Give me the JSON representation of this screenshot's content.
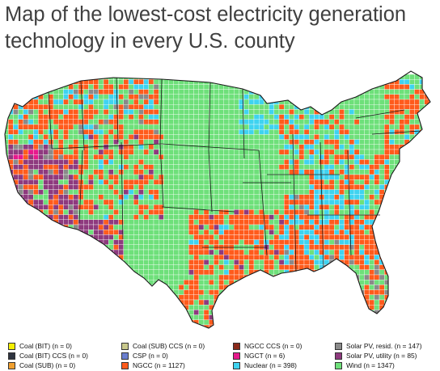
{
  "title": "Map of the lowest-cost electricity generation technology in every U.S. county",
  "title_lines": [
    "Map of the lowest-cost electricity generation",
    "technology in every U.S. county"
  ],
  "legend": [
    {
      "key": "coal-bit",
      "label": "Coal (BIT) (n = 0)",
      "technology": "Coal (BIT)",
      "count": 0,
      "color": "#f5f000"
    },
    {
      "key": "coal-bit-ccs",
      "label": "Coal (BIT) CCS (n = 0)",
      "technology": "Coal (BIT) CCS",
      "count": 0,
      "color": "#2e3440"
    },
    {
      "key": "coal-sub",
      "label": "Coal (SUB) (n = 0)",
      "technology": "Coal (SUB)",
      "count": 0,
      "color": "#f0a030"
    },
    {
      "key": "coal-sub-ccs",
      "label": "Coal (SUB) CCS (n = 0)",
      "technology": "Coal (SUB) CCS",
      "count": 0,
      "color": "#c8c88c"
    },
    {
      "key": "csp",
      "label": "CSP (n = 0)",
      "technology": "CSP",
      "count": 0,
      "color": "#6a7fd0"
    },
    {
      "key": "ngcc",
      "label": "NGCC (n = 1127)",
      "technology": "NGCC",
      "count": 1127,
      "color": "#ff5b1c"
    },
    {
      "key": "ngcc-ccs",
      "label": "NGCC CCS (n = 0)",
      "technology": "NGCC CCS",
      "count": 0,
      "color": "#8b2a1a"
    },
    {
      "key": "ngct",
      "label": "NGCT (n = 6)",
      "technology": "NGCT",
      "count": 6,
      "color": "#e6198c"
    },
    {
      "key": "nuclear",
      "label": "Nuclear (n = 398)",
      "technology": "Nuclear",
      "count": 398,
      "color": "#3fd3f0"
    },
    {
      "key": "solar-resid",
      "label": "Solar PV, resid. (n = 147)",
      "technology": "Solar PV, resid.",
      "count": 147,
      "color": "#8a8a8a"
    },
    {
      "key": "solar-utility",
      "label": "Solar PV, utility (n = 85)",
      "technology": "Solar PV, utility",
      "count": 85,
      "color": "#8e3a7e"
    },
    {
      "key": "wind",
      "label": "Wind (n = 1347)",
      "technology": "Wind",
      "count": 1347,
      "color": "#6ee07a"
    }
  ],
  "colors": {
    "state_border": "#1a1a1a",
    "county_border": "#ffffff"
  }
}
